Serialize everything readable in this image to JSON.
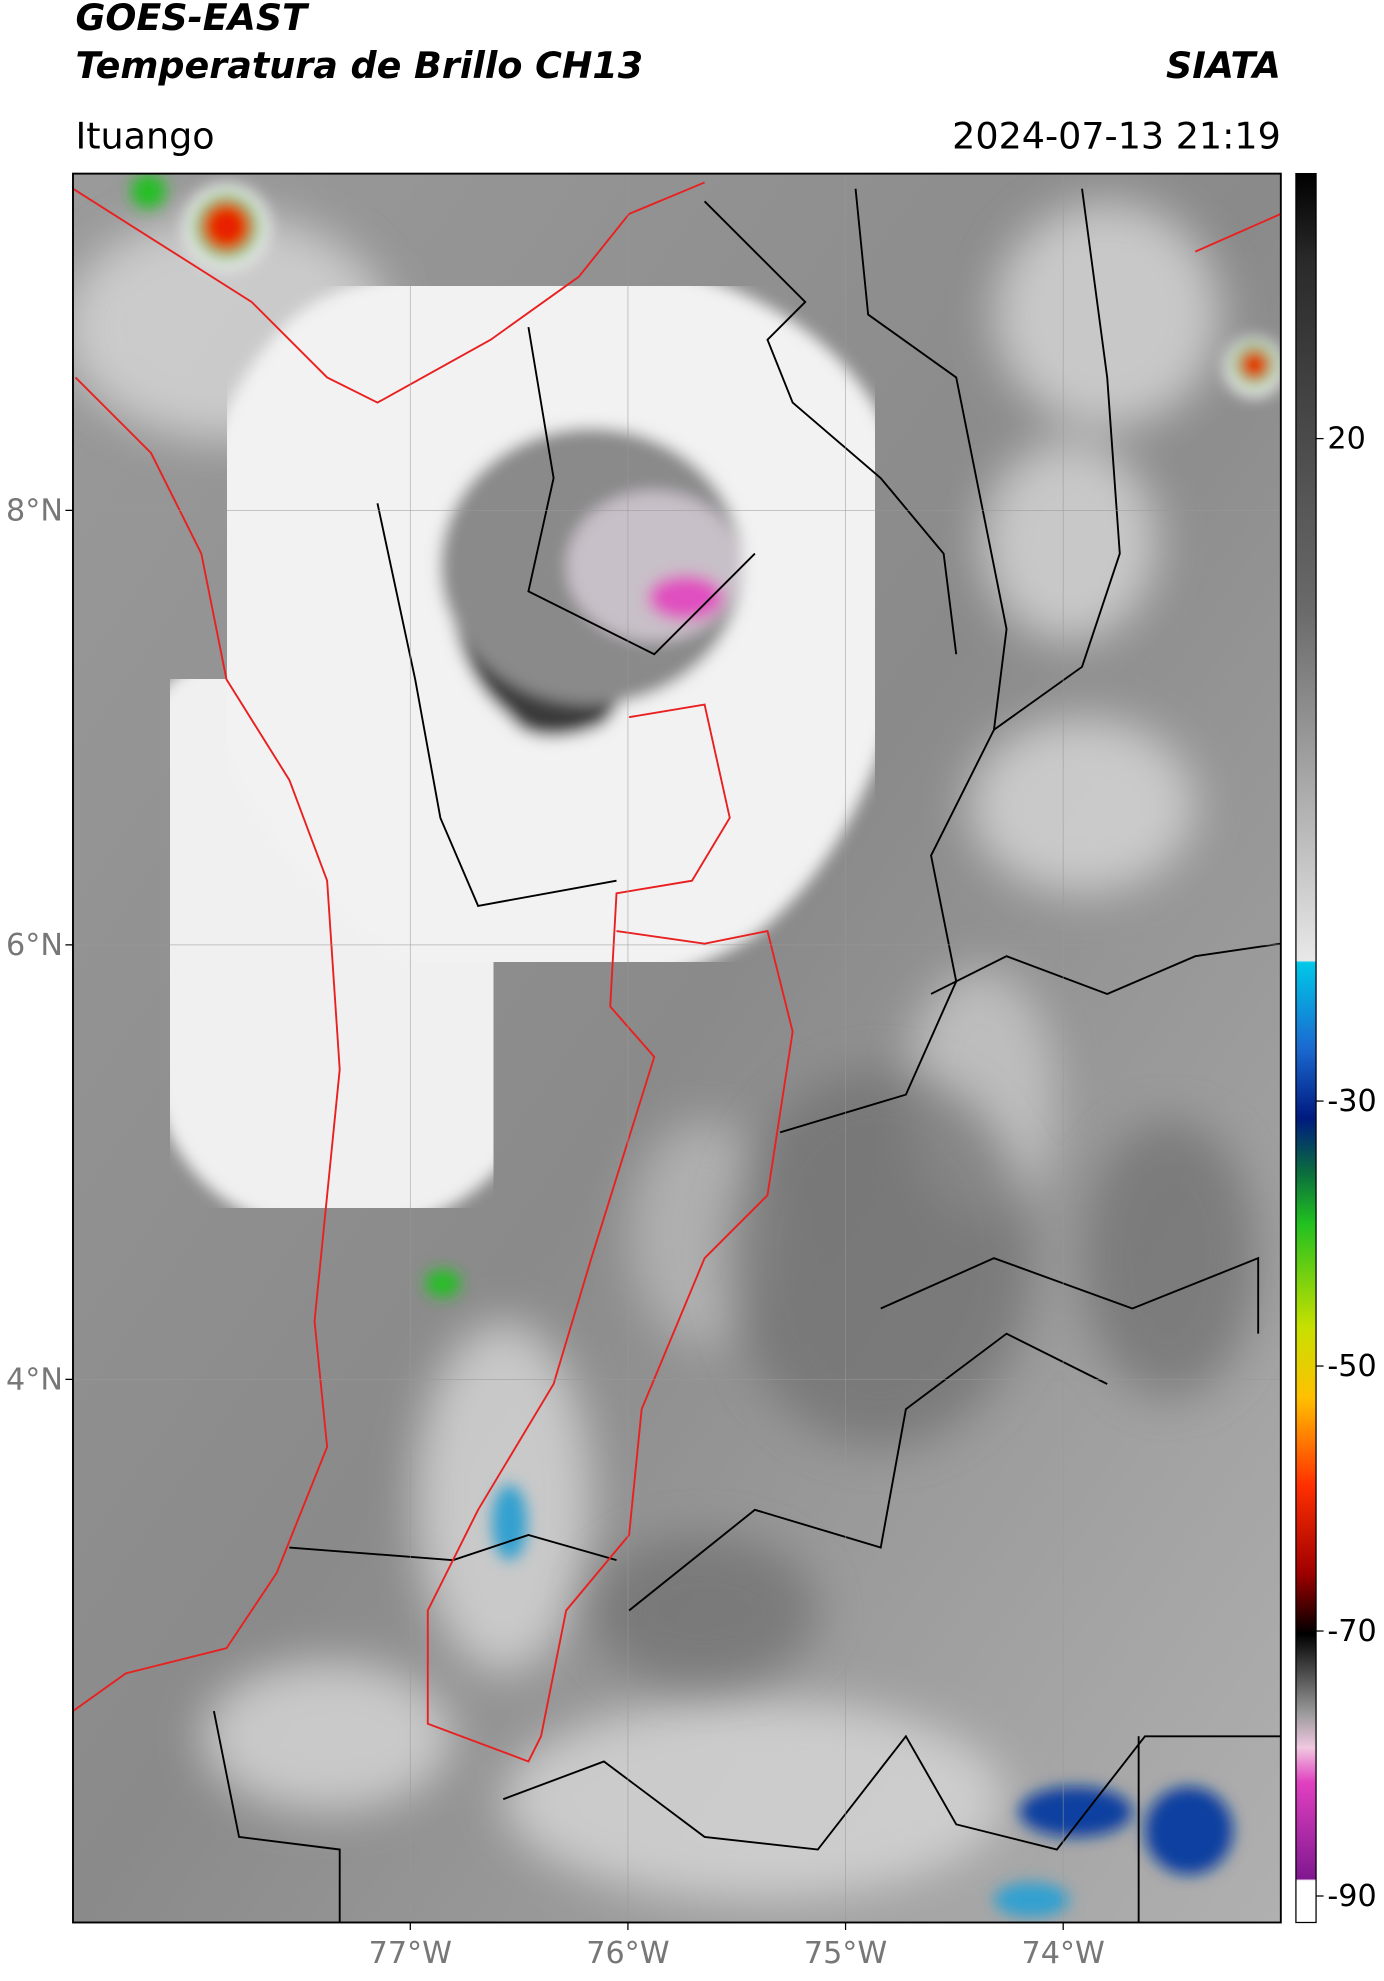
{
  "header": {
    "title": "GOES-EAST",
    "subtitle": "Temperatura de Brillo CH13",
    "brand": "SIATA",
    "location": "Ituango",
    "datetime": "2024-07-13 21:19"
  },
  "map": {
    "xlim": [
      -78.55,
      -73.0
    ],
    "ylim": [
      1.5,
      9.55
    ],
    "xticks": [
      {
        "value": -77,
        "label": "77°W"
      },
      {
        "value": -76,
        "label": "76°W"
      },
      {
        "value": -75,
        "label": "75°W"
      },
      {
        "value": -74,
        "label": "74°W"
      }
    ],
    "yticks": [
      {
        "value": 8,
        "label": "8°N"
      },
      {
        "value": 6,
        "label": "6°N"
      },
      {
        "value": 4,
        "label": "4°N"
      }
    ]
  },
  "colorbar": {
    "lim": [
      -92,
      40
    ],
    "ticks": [
      20,
      -30,
      -50,
      -70,
      -90
    ]
  }
}
